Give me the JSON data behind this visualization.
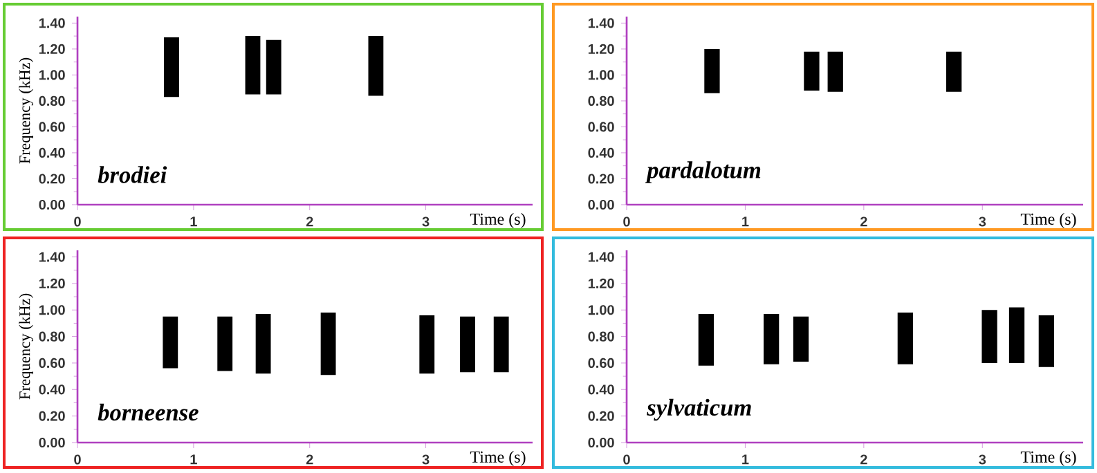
{
  "chart_data": [
    {
      "type": "bar",
      "x": [
        0.81,
        1.51,
        1.69,
        2.57
      ],
      "base": [
        0.83,
        0.85,
        0.85,
        0.84
      ],
      "values": [
        0.46,
        0.45,
        0.42,
        0.46
      ],
      "color": "#000000",
      "xlabel": "Time (s)",
      "ylabel": "Frequency (kHz)",
      "annotations": [
        "brodiei"
      ],
      "xlim": [
        0,
        3.92
      ],
      "ylim": [
        0,
        1.45
      ],
      "xticks": [
        0,
        1,
        2,
        3
      ],
      "yticks": [
        {
          "value": 0,
          "label": "0.00"
        },
        {
          "value": 0.2,
          "label": "0.20"
        },
        {
          "value": 0.4,
          "label": "0.40"
        },
        {
          "value": 0.6,
          "label": "0.60"
        },
        {
          "value": 0.8,
          "label": "0.80"
        },
        {
          "value": 1,
          "label": "1.00"
        },
        {
          "value": 1.2,
          "label": "1.20"
        },
        {
          "value": 1.4,
          "label": "1.40"
        }
      ]
    },
    {
      "type": "bar",
      "x": [
        0.72,
        1.56,
        1.76,
        2.76
      ],
      "base": [
        0.86,
        0.88,
        0.87,
        0.87
      ],
      "values": [
        0.34,
        0.3,
        0.31,
        0.31
      ],
      "color": "#000000",
      "xlabel": "Time (s)",
      "annotations": [
        "pardalotum"
      ],
      "xlim": [
        0,
        3.85
      ],
      "ylim": [
        0,
        1.45
      ],
      "xticks": [
        0,
        1,
        2,
        3
      ],
      "yticks": [
        {
          "value": 0,
          "label": "0.00"
        },
        {
          "value": 0.2,
          "label": "0.20"
        },
        {
          "value": 0.4,
          "label": "0.40"
        },
        {
          "value": 0.6,
          "label": "0.60"
        },
        {
          "value": 0.8,
          "label": "0.80"
        },
        {
          "value": 1,
          "label": "1.00"
        },
        {
          "value": 1.2,
          "label": "1.20"
        },
        {
          "value": 1.4,
          "label": "1.40"
        }
      ]
    },
    {
      "type": "bar",
      "x": [
        0.8,
        1.27,
        1.6,
        2.16,
        3.01,
        3.36,
        3.65
      ],
      "base": [
        0.56,
        0.54,
        0.52,
        0.51,
        0.52,
        0.53,
        0.53
      ],
      "values": [
        0.39,
        0.41,
        0.45,
        0.47,
        0.44,
        0.42,
        0.42
      ],
      "color": "#000000",
      "xlabel": "Time (s)",
      "ylabel": "Frequency (kHz)",
      "annotations": [
        "borneense"
      ],
      "xlim": [
        0,
        3.92
      ],
      "ylim": [
        0,
        1.45
      ],
      "xticks": [
        0,
        1,
        2,
        3
      ],
      "yticks": [
        {
          "value": 0,
          "label": "0.00"
        },
        {
          "value": 0.2,
          "label": "0.20"
        },
        {
          "value": 0.4,
          "label": "0.40"
        },
        {
          "value": 0.6,
          "label": "0.60"
        },
        {
          "value": 0.8,
          "label": "0.80"
        },
        {
          "value": 1,
          "label": "1.00"
        },
        {
          "value": 1.2,
          "label": "1.20"
        },
        {
          "value": 1.4,
          "label": "1.40"
        }
      ]
    },
    {
      "type": "bar",
      "x": [
        0.67,
        1.22,
        1.47,
        2.35,
        3.06,
        3.29,
        3.54
      ],
      "base": [
        0.58,
        0.59,
        0.61,
        0.59,
        0.6,
        0.6,
        0.57
      ],
      "values": [
        0.39,
        0.38,
        0.34,
        0.39,
        0.4,
        0.42,
        0.39
      ],
      "color": "#000000",
      "xlabel": "Time (s)",
      "annotations": [
        "sylvaticum"
      ],
      "xlim": [
        0,
        3.85
      ],
      "ylim": [
        0,
        1.45
      ],
      "xticks": [
        0,
        1,
        2,
        3
      ],
      "yticks": [
        {
          "value": 0,
          "label": "0.00"
        },
        {
          "value": 0.2,
          "label": "0.20"
        },
        {
          "value": 0.4,
          "label": "0.40"
        },
        {
          "value": 0.6,
          "label": "0.60"
        },
        {
          "value": 0.8,
          "label": "0.80"
        },
        {
          "value": 1,
          "label": "1.00"
        },
        {
          "value": 1.2,
          "label": "1.20"
        },
        {
          "value": 1.4,
          "label": "1.40"
        }
      ]
    }
  ]
}
